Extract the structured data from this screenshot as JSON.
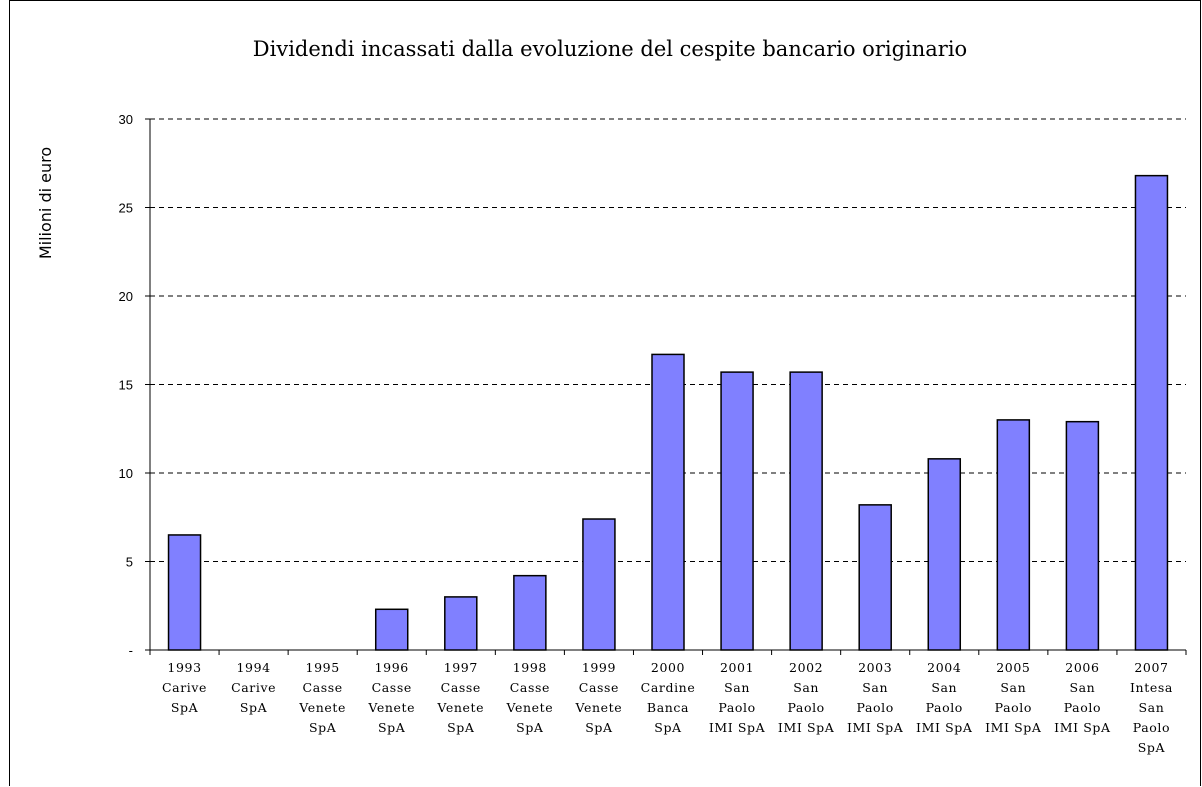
{
  "chart_data": {
    "type": "bar",
    "title": "Dividendi incassati dalla evoluzione del cespite bancario originario",
    "ylabel": "Milioni di euro",
    "xlabel": "",
    "ylim": [
      0,
      30
    ],
    "yticks": [
      "-",
      "5",
      "10",
      "15",
      "20",
      "25",
      "30"
    ],
    "ytick_values": [
      0,
      5,
      10,
      15,
      20,
      25,
      30
    ],
    "grid": "horizontal-dashed",
    "bar_color": "#8080ff",
    "categories": [
      [
        "1993",
        "Carive",
        "SpA"
      ],
      [
        "1994",
        "Carive",
        "SpA"
      ],
      [
        "1995",
        "Casse",
        "Venete",
        "SpA"
      ],
      [
        "1996",
        "Casse",
        "Venete",
        "SpA"
      ],
      [
        "1997",
        "Casse",
        "Venete",
        "SpA"
      ],
      [
        "1998",
        "Casse",
        "Venete",
        "SpA"
      ],
      [
        "1999",
        "Casse",
        "Venete",
        "SpA"
      ],
      [
        "2000",
        "Cardine",
        "Banca",
        "SpA"
      ],
      [
        "2001",
        "San",
        "Paolo",
        "IMI SpA"
      ],
      [
        "2002",
        "San",
        "Paolo",
        "IMI SpA"
      ],
      [
        "2003",
        "San",
        "Paolo",
        "IMI SpA"
      ],
      [
        "2004",
        "San",
        "Paolo",
        "IMI SpA"
      ],
      [
        "2005",
        "San",
        "Paolo",
        "IMI SpA"
      ],
      [
        "2006",
        "San",
        "Paolo",
        "IMI SpA"
      ],
      [
        "2007",
        "Intesa",
        "San",
        "Paolo",
        "SpA"
      ]
    ],
    "values": [
      6.5,
      0,
      0,
      2.3,
      3.0,
      4.2,
      7.4,
      16.7,
      15.7,
      15.7,
      8.2,
      10.8,
      13.0,
      12.9,
      26.8
    ]
  }
}
